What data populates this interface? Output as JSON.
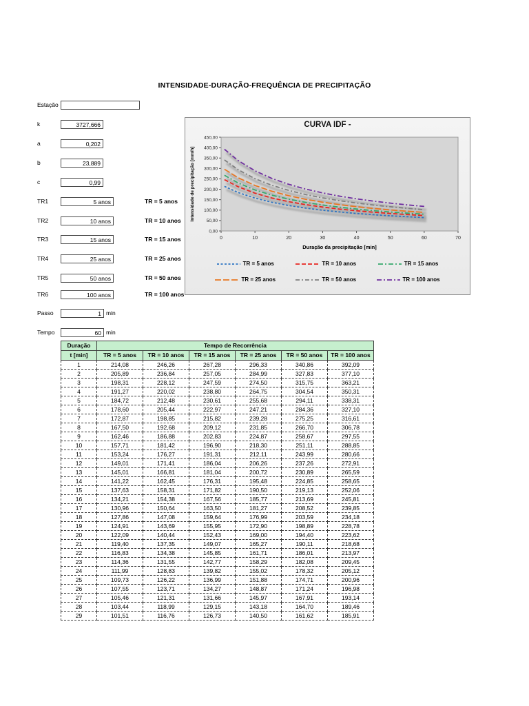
{
  "page": {
    "title": "INTENSIDADE-DURAÇÃO-FREQUÊNCIA DE PRECIPITAÇÃO"
  },
  "params": {
    "rows": [
      {
        "label": "Estação",
        "value": ""
      },
      {
        "label": "k",
        "value": "3727,666"
      },
      {
        "label": "a",
        "value": "0,202"
      },
      {
        "label": "b",
        "value": "23,889"
      },
      {
        "label": "c",
        "value": "0,99"
      },
      {
        "label": "TR1",
        "value": "5 anos",
        "note": "TR = 5 anos"
      },
      {
        "label": "TR2",
        "value": "10 anos",
        "note": "TR = 10 anos"
      },
      {
        "label": "TR3",
        "value": "15 anos",
        "note": "TR = 15 anos"
      },
      {
        "label": "TR4",
        "value": "25 anos",
        "note": "TR = 25 anos"
      },
      {
        "label": "TR5",
        "value": "50 anos",
        "note": "TR = 50 anos"
      },
      {
        "label": "TR6",
        "value": "100 anos",
        "note": "TR = 100 anos"
      },
      {
        "label": "Passo",
        "value": "1",
        "unit": "min"
      },
      {
        "label": "Tempo",
        "value": "60",
        "unit": "min"
      }
    ]
  },
  "chart_data": {
    "type": "line",
    "title": "CURVA IDF -",
    "xlabel": "Duração da precipitação [min]",
    "ylabel": "Intensidade de precipitação [mm/h]",
    "xlim": [
      0,
      70
    ],
    "ylim": [
      0,
      450
    ],
    "x_ticks": [
      0,
      10,
      20,
      30,
      40,
      50,
      60,
      70
    ],
    "y_ticks": [
      "0,00",
      "50,00",
      "100,00",
      "150,00",
      "200,00",
      "250,00",
      "300,00",
      "350,00",
      "400,00",
      "450,00"
    ],
    "legend_position": "bottom",
    "grid": false,
    "x": [
      1,
      5,
      10,
      15,
      20,
      25,
      30,
      35,
      40,
      45,
      50,
      55,
      60
    ],
    "series": [
      {
        "name": "TR = 5 anos",
        "color": "#2e75c3",
        "dash": "3 2.5",
        "values": [
          214.1,
          184.7,
          157.7,
          137.6,
          122.1,
          109.8,
          99.7,
          91.3,
          84.2,
          78.2,
          72.9,
          68.4,
          64.3
        ]
      },
      {
        "name": "TR = 10 anos",
        "color": "#e8251f",
        "dash": "6 3",
        "values": [
          246.3,
          212.4,
          181.4,
          158.3,
          140.5,
          126.3,
          114.7,
          105.0,
          96.9,
          89.9,
          83.9,
          78.6,
          74.0
        ]
      },
      {
        "name": "TR = 15 anos",
        "color": "#36a96c",
        "dash": "7 3 2 3",
        "values": [
          267.3,
          230.6,
          196.9,
          171.8,
          152.5,
          137.0,
          124.4,
          114.0,
          105.2,
          97.6,
          91.1,
          85.3,
          80.3
        ]
      },
      {
        "name": "TR = 25 anos",
        "color": "#e87722",
        "dash": "9 3",
        "values": [
          296.3,
          255.6,
          218.3,
          190.5,
          169.0,
          151.9,
          138.0,
          126.4,
          116.6,
          108.2,
          100.9,
          94.6,
          89.0
        ]
      },
      {
        "name": "TR = 50 anos",
        "color": "#7f7f7f",
        "dash": "6 3 2 3",
        "values": [
          340.9,
          294.1,
          251.1,
          219.1,
          194.4,
          174.7,
          158.7,
          145.4,
          134.1,
          124.5,
          116.1,
          108.8,
          102.4
        ]
      },
      {
        "name": "TR = 100 anos",
        "color": "#7030a0",
        "dash": "7 3 2 3",
        "values": [
          392.1,
          338.3,
          288.9,
          252.1,
          223.7,
          201.0,
          182.5,
          167.2,
          154.2,
          143.2,
          133.6,
          125.2,
          117.8
        ]
      }
    ]
  },
  "table": {
    "header_bg": "#c6efce",
    "col0_line1": "Duração",
    "col0_line2": "t [min]",
    "span_header": "Tempo de Recorrência",
    "columns": [
      "TR = 5 anos",
      "TR = 10 anos",
      "TR = 15 anos",
      "TR = 25 anos",
      "TR = 50 anos",
      "TR = 100 anos"
    ],
    "rows": [
      [
        "1",
        "214,08",
        "246,26",
        "267,28",
        "296,33",
        "340,86",
        "392,09"
      ],
      [
        "2",
        "205,89",
        "236,84",
        "257,05",
        "284,99",
        "327,83",
        "377,10"
      ],
      [
        "3",
        "198,31",
        "228,12",
        "247,59",
        "274,50",
        "315,75",
        "363,21"
      ],
      [
        "4",
        "191,27",
        "220,02",
        "238,80",
        "264,75",
        "304,54",
        "350,31"
      ],
      [
        "5",
        "184,72",
        "212,48",
        "230,61",
        "255,68",
        "294,11",
        "338,31"
      ],
      [
        "6",
        "178,60",
        "205,44",
        "222,97",
        "247,21",
        "284,36",
        "327,10"
      ],
      [
        "7",
        "172,87",
        "198,85",
        "215,82",
        "239,28",
        "275,25",
        "316,61"
      ],
      [
        "8",
        "167,50",
        "192,68",
        "209,12",
        "231,85",
        "266,70",
        "306,78"
      ],
      [
        "9",
        "162,46",
        "186,88",
        "202,83",
        "224,87",
        "258,67",
        "297,55"
      ],
      [
        "10",
        "157,71",
        "181,42",
        "196,90",
        "218,30",
        "251,11",
        "288,85"
      ],
      [
        "11",
        "153,24",
        "176,27",
        "191,31",
        "212,11",
        "243,99",
        "280,66"
      ],
      [
        "12",
        "149,01",
        "171,41",
        "186,04",
        "206,26",
        "237,26",
        "272,91"
      ],
      [
        "13",
        "145,01",
        "166,81",
        "181,04",
        "200,72",
        "230,89",
        "265,59"
      ],
      [
        "14",
        "141,22",
        "162,45",
        "176,31",
        "195,48",
        "224,85",
        "258,65"
      ],
      [
        "15",
        "137,63",
        "158,31",
        "171,82",
        "190,50",
        "219,13",
        "252,06"
      ],
      [
        "16",
        "134,21",
        "154,38",
        "167,56",
        "185,77",
        "213,69",
        "245,81"
      ],
      [
        "17",
        "130,96",
        "150,64",
        "163,50",
        "181,27",
        "208,52",
        "239,85"
      ],
      [
        "18",
        "127,86",
        "147,08",
        "159,64",
        "176,99",
        "203,59",
        "234,18"
      ],
      [
        "19",
        "124,91",
        "143,69",
        "155,95",
        "172,90",
        "198,89",
        "228,78"
      ],
      [
        "20",
        "122,09",
        "140,44",
        "152,43",
        "169,00",
        "194,40",
        "223,62"
      ],
      [
        "21",
        "119,40",
        "137,35",
        "149,07",
        "165,27",
        "190,11",
        "218,68"
      ],
      [
        "22",
        "116,83",
        "134,38",
        "145,85",
        "161,71",
        "186,01",
        "213,97"
      ],
      [
        "23",
        "114,36",
        "131,55",
        "142,77",
        "158,29",
        "182,08",
        "209,45"
      ],
      [
        "24",
        "111,99",
        "128,83",
        "139,82",
        "155,02",
        "178,32",
        "205,12"
      ],
      [
        "25",
        "109,73",
        "126,22",
        "136,99",
        "151,88",
        "174,71",
        "200,96"
      ],
      [
        "26",
        "107,55",
        "123,71",
        "134,27",
        "148,87",
        "171,24",
        "196,98"
      ],
      [
        "27",
        "105,46",
        "121,31",
        "131,66",
        "145,97",
        "167,91",
        "193,14"
      ],
      [
        "28",
        "103,44",
        "118,99",
        "129,15",
        "143,18",
        "164,70",
        "189,46"
      ],
      [
        "29",
        "101,51",
        "116,76",
        "126,73",
        "140,50",
        "161,62",
        "185,91"
      ]
    ]
  }
}
